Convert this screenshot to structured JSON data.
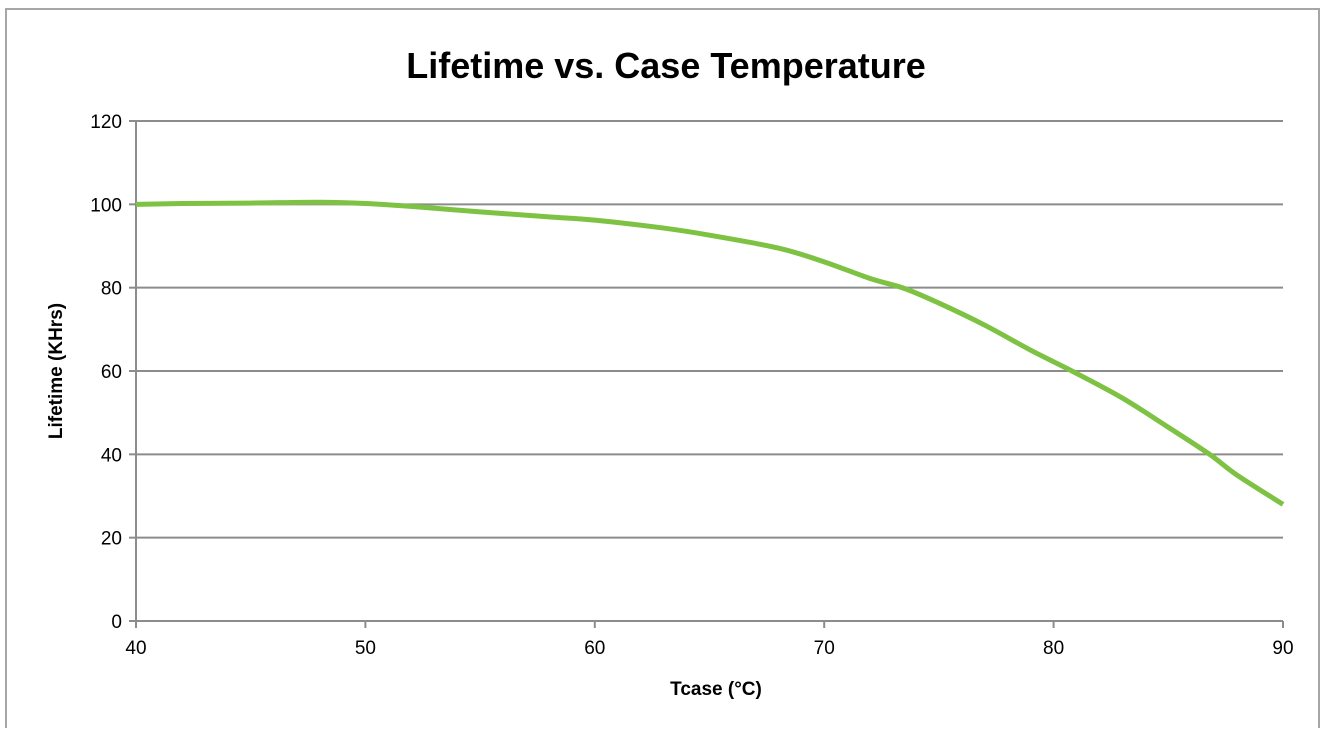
{
  "chart_data": {
    "type": "line",
    "title": "Lifetime vs. Case Temperature",
    "xlabel": "Tcase (°C)",
    "ylabel": "Lifetime (KHrs)",
    "xlim": [
      40,
      90
    ],
    "ylim": [
      0,
      120
    ],
    "x_ticks": [
      40,
      50,
      60,
      70,
      80,
      90
    ],
    "y_ticks": [
      0,
      20,
      40,
      60,
      80,
      100,
      120
    ],
    "grid": "horizontal",
    "legend": "none",
    "series": [
      {
        "color": "#7dc242",
        "x": [
          40,
          42,
          45,
          48,
          50,
          52,
          55,
          58,
          60,
          63,
          65,
          68,
          70,
          72,
          73.5,
          75,
          77,
          79,
          80.8,
          83,
          85,
          86.8,
          88,
          90
        ],
        "values": [
          100,
          100.2,
          100.3,
          100.5,
          100.2,
          99.5,
          98.2,
          97,
          96.2,
          94.3,
          92.6,
          89.5,
          86.2,
          82.2,
          79.8,
          76.3,
          71,
          65,
          60,
          53.5,
          46.5,
          40,
          35,
          28
        ]
      }
    ]
  }
}
